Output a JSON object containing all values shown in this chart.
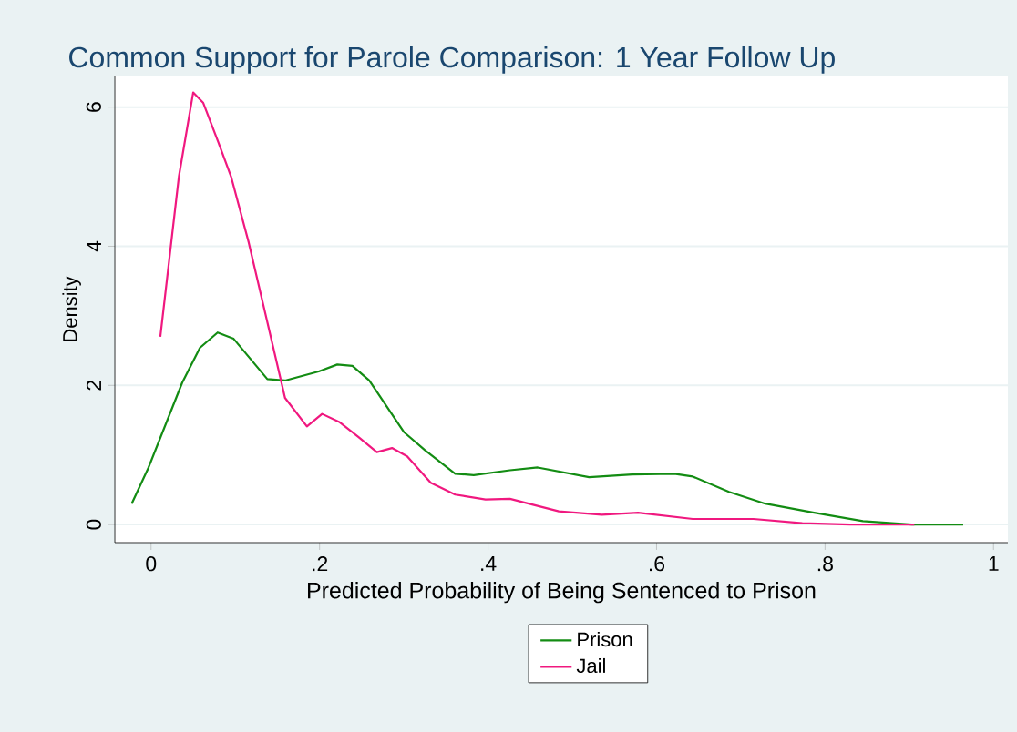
{
  "chart_data": {
    "type": "line",
    "title": "Common Support for Parole Comparison: 1 Year Follow Up",
    "xlabel": "Predicted Probability of Being Sentenced to Prison",
    "ylabel": "Density",
    "xlim": [
      -0.043,
      1.017
    ],
    "ylim": [
      -0.26,
      6.44
    ],
    "xticks": [
      0,
      {
        "value": 0.2,
        "label": ".2"
      },
      {
        "value": 0.4,
        "label": ".4"
      },
      {
        "value": 0.6,
        "label": ".6"
      },
      {
        "value": 0.8,
        "label": ".8"
      },
      1
    ],
    "yticks": [
      0,
      2,
      4,
      6
    ],
    "grid": "y",
    "legend": "bottom",
    "series": [
      {
        "name": "Prison",
        "color": "#138c13",
        "x": [
          -0.023,
          -0.003,
          0.037,
          0.058,
          0.079,
          0.098,
          0.138,
          0.159,
          0.199,
          0.221,
          0.239,
          0.259,
          0.3,
          0.325,
          0.361,
          0.383,
          0.426,
          0.459,
          0.52,
          0.571,
          0.621,
          0.643,
          0.686,
          0.729,
          0.787,
          0.845,
          0.903,
          0.964
        ],
        "values": [
          0.3,
          0.82,
          2.04,
          2.54,
          2.76,
          2.67,
          2.09,
          2.07,
          2.2,
          2.3,
          2.28,
          2.07,
          1.33,
          1.07,
          0.73,
          0.71,
          0.78,
          0.82,
          0.68,
          0.72,
          0.73,
          0.69,
          0.47,
          0.3,
          0.17,
          0.05,
          0,
          0
        ]
      },
      {
        "name": "Jail",
        "color": "#f0187f",
        "x": [
          0.011,
          0.033,
          0.05,
          0.062,
          0.08,
          0.095,
          0.116,
          0.138,
          0.159,
          0.185,
          0.203,
          0.224,
          0.246,
          0.268,
          0.286,
          0.304,
          0.332,
          0.361,
          0.397,
          0.426,
          0.484,
          0.535,
          0.578,
          0.643,
          0.715,
          0.773,
          0.83,
          0.906
        ],
        "values": [
          2.7,
          5.0,
          6.21,
          6.06,
          5.49,
          5.0,
          4.05,
          2.91,
          1.82,
          1.41,
          1.59,
          1.47,
          1.26,
          1.04,
          1.1,
          0.98,
          0.6,
          0.43,
          0.36,
          0.37,
          0.19,
          0.14,
          0.17,
          0.08,
          0.08,
          0.02,
          0,
          0
        ]
      }
    ]
  }
}
